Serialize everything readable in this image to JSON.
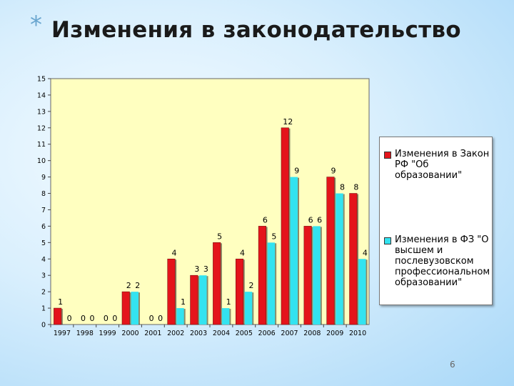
{
  "slide": {
    "bullet": "*",
    "title": "Изменения в законодательство",
    "page_number": "6"
  },
  "colors": {
    "series1": "#e4141b",
    "series2": "#33e3f0",
    "plot_bg": "#ffffc0"
  },
  "chart_data": {
    "type": "bar",
    "categories": [
      "1997",
      "1998",
      "1999",
      "2000",
      "2001",
      "2002",
      "2003",
      "2004",
      "2005",
      "2006",
      "2007",
      "2008",
      "2009",
      "2010"
    ],
    "series": [
      {
        "name": "Изменения в Закон РФ \"Об образовании\"",
        "values": [
          1,
          0,
          0,
          2,
          0,
          4,
          3,
          5,
          4,
          6,
          12,
          6,
          9,
          8
        ]
      },
      {
        "name": "Изменения в ФЗ \"О высшем и послевузовском профессиональном образовании\"",
        "values": [
          0,
          0,
          0,
          2,
          0,
          1,
          3,
          1,
          2,
          5,
          9,
          6,
          8,
          4
        ]
      }
    ],
    "ylim": [
      0,
      15
    ],
    "yticks": [
      "0",
      "1",
      "2",
      "3",
      "4",
      "5",
      "6",
      "7",
      "8",
      "9",
      "10",
      "11",
      "12",
      "13",
      "14",
      "15"
    ],
    "xlabel": "",
    "ylabel": "",
    "legend": "right",
    "grid": false
  }
}
